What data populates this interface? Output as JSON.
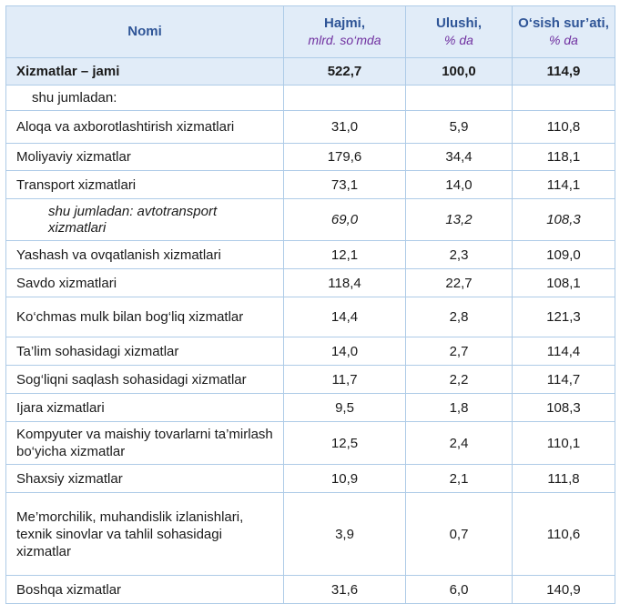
{
  "header": {
    "name": "Nomi",
    "volume": "Hajmi,",
    "volume_unit": "mlrd. so‘mda",
    "share": "Ulushi,",
    "share_unit": "% da",
    "growth": "O‘sish sur’ati,",
    "growth_unit": "% da"
  },
  "total": {
    "name": "Xizmatlar – jami",
    "volume": "522,7",
    "share": "100,0",
    "growth": "114,9"
  },
  "subheading": "shu jumladan:",
  "rows": [
    {
      "name": "Aloqa va axborotlashtirish xizmatlari",
      "volume": "31,0",
      "share": "5,9",
      "growth": "110,8"
    },
    {
      "name": "Moliyaviy xizmatlar",
      "volume": "179,6",
      "share": "34,4",
      "growth": "118,1"
    },
    {
      "name": "Transport xizmatlari",
      "volume": "73,1",
      "share": "14,0",
      "growth": "114,1"
    },
    {
      "name": "shu jumladan: avtotransport xizmatlari",
      "volume": "69,0",
      "share": "13,2",
      "growth": "108,3"
    },
    {
      "name": "Yashash va ovqatlanish xizmatlari",
      "volume": "12,1",
      "share": "2,3",
      "growth": "109,0"
    },
    {
      "name": "Savdo xizmatlari",
      "volume": "118,4",
      "share": "22,7",
      "growth": "108,1"
    },
    {
      "name": "Ko‘chmas mulk bilan bog‘liq xizmatlar",
      "volume": "14,4",
      "share": "2,8",
      "growth": "121,3"
    },
    {
      "name": "Ta’lim sohasidagi xizmatlar",
      "volume": "14,0",
      "share": "2,7",
      "growth": "114,4"
    },
    {
      "name": "Sog‘liqni saqlash sohasidagi xizmatlar",
      "volume": "11,7",
      "share": "2,2",
      "growth": "114,7"
    },
    {
      "name": "Ijara xizmatlari",
      "volume": "9,5",
      "share": "1,8",
      "growth": "108,3"
    },
    {
      "name": "Kompyuter va maishiy tovarlarni ta’mirlash bo‘yicha xizmatlar",
      "volume": "12,5",
      "share": "2,4",
      "growth": "110,1"
    },
    {
      "name": "Shaxsiy xizmatlar",
      "volume": "10,9",
      "share": "2,1",
      "growth": "111,8"
    },
    {
      "name": "Me’morchilik, muhandislik izlanishlari, texnik sinovlar va tahlil sohasidagi xizmatlar",
      "volume": "3,9",
      "share": "0,7",
      "growth": "110,6"
    },
    {
      "name": "Boshqa xizmatlar",
      "volume": "31,6",
      "share": "6,0",
      "growth": "140,9"
    }
  ]
}
